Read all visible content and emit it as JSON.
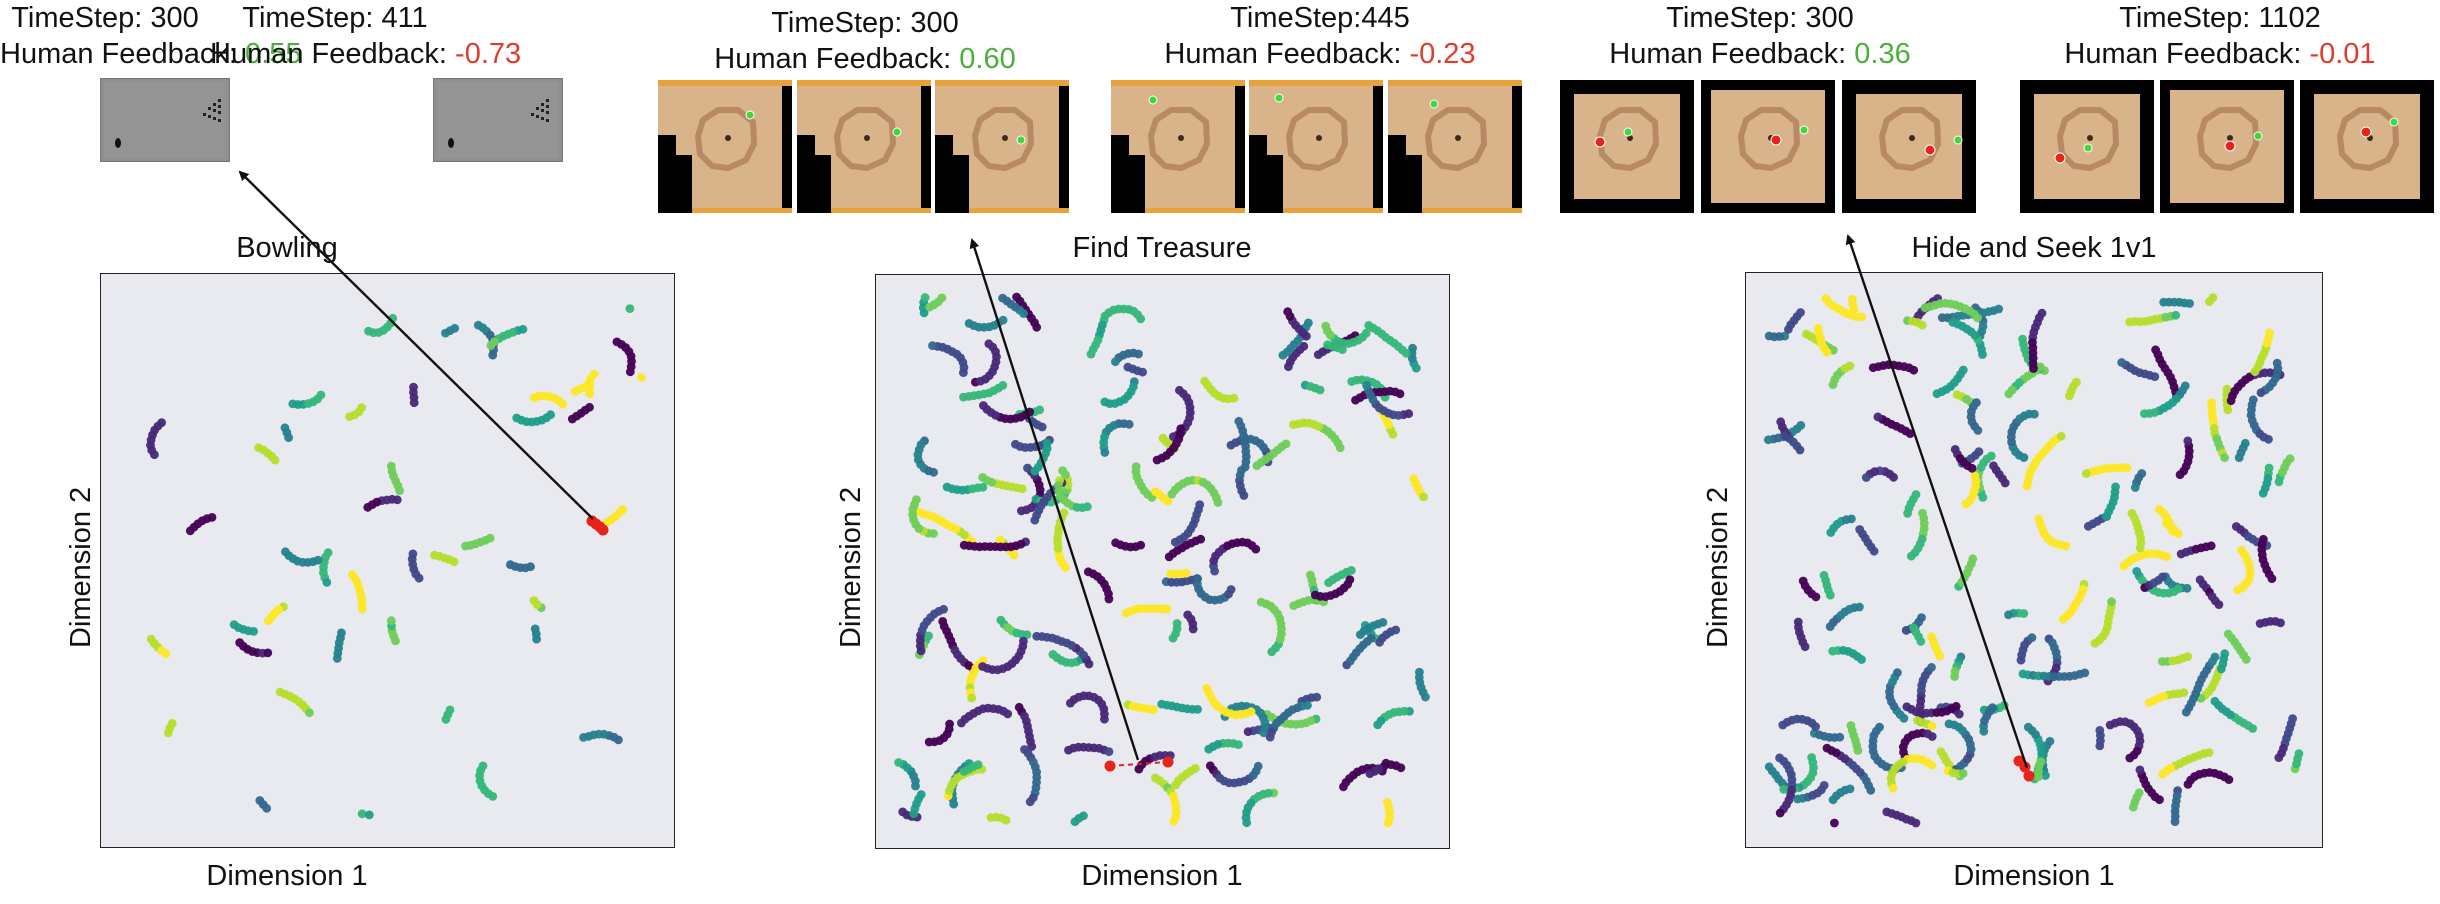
{
  "headers": [
    {
      "timestep": "TimeStep: 300",
      "feedback_label": "Human Feedback:",
      "feedback_value": "0.55",
      "sign": "pos"
    },
    {
      "timestep": "TimeStep: 411",
      "feedback_label": "Human Feedback:",
      "feedback_value": "-0.73",
      "sign": "neg"
    },
    {
      "timestep": "TimeStep: 300",
      "feedback_label": "Human Feedback:",
      "feedback_value": "0.60",
      "sign": "pos"
    },
    {
      "timestep": "TimeStep:445",
      "feedback_label": "Human Feedback:",
      "feedback_value": "-0.23",
      "sign": "neg"
    },
    {
      "timestep": "TimeStep: 300",
      "feedback_label": "Human Feedback:",
      "feedback_value": "0.36",
      "sign": "pos"
    },
    {
      "timestep": "TimeStep: 1102",
      "feedback_label": "Human Feedback:",
      "feedback_value": "-0.01",
      "sign": "neg"
    }
  ],
  "colors": {
    "positive": "#4caf3c",
    "negative": "#e23b2c",
    "plot_bg": "#e9e9f0",
    "highlight": "#e8231a",
    "viridis": [
      "#440154",
      "#482878",
      "#3e4a89",
      "#31688e",
      "#26828e",
      "#1f9e89",
      "#35b779",
      "#6ece58",
      "#b5de2b",
      "#fde725"
    ]
  },
  "chart_data": [
    {
      "type": "scatter",
      "title": "Bowling",
      "xlabel": "Dimension 1",
      "ylabel": "Dimension 2",
      "grid": false,
      "legend": "none",
      "highlight": "red points joined to the selected frames by an arrow"
    },
    {
      "type": "scatter",
      "title": "Find Treasure",
      "xlabel": "Dimension 1",
      "ylabel": "Dimension 2",
      "grid": false,
      "legend": "none",
      "highlight": "two red points joined by a dashed red line"
    },
    {
      "type": "scatter",
      "title": "Hide and Seek 1v1",
      "xlabel": "Dimension 1",
      "ylabel": "Dimension 2",
      "grid": false,
      "legend": "none",
      "highlight": "red points joined to the selected frames by an arrow"
    }
  ]
}
